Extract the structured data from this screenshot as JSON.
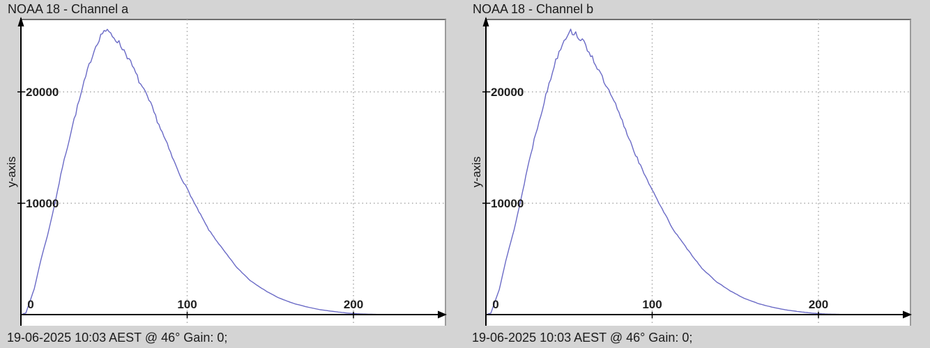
{
  "colors": {
    "background": "#d4d4d4",
    "plot_background": "#ffffff",
    "plot_border_top": "#6e6e6e",
    "plot_border_right": "#9b9b9b",
    "axis": "#000000",
    "grid": "#a8a8a8",
    "curve": "#6a6ac6",
    "text": "#1c1c1c"
  },
  "noise": {
    "min_count": 600,
    "peak_x_range": [
      28,
      92
    ],
    "amp_peak_factor": 0.01,
    "amp_base_factor": 0.006,
    "amp_offset": 20
  },
  "charts": [
    {
      "title": "NOAA 18 - Channel a",
      "footer": "19-06-2025 10:03 AEST @ 46° Gain: 0;",
      "y_axis_label": "y-axis",
      "noise_seed": 7,
      "x_ticks": [
        {
          "value": 0,
          "label": "0"
        },
        {
          "value": 100,
          "label": "100"
        },
        {
          "value": 200,
          "label": "200"
        }
      ],
      "y_ticks": [
        {
          "value": 10000,
          "label": "10000"
        },
        {
          "value": 20000,
          "label": "20000"
        }
      ]
    },
    {
      "title": "NOAA 18 - Channel b",
      "footer": "19-06-2025 10:03 AEST @ 46° Gain: 0;",
      "y_axis_label": "y-axis",
      "noise_seed": 13,
      "x_ticks": [
        {
          "value": 0,
          "label": "0"
        },
        {
          "value": 100,
          "label": "100"
        },
        {
          "value": 200,
          "label": "200"
        }
      ],
      "y_ticks": [
        {
          "value": 10000,
          "label": "10000"
        },
        {
          "value": 20000,
          "label": "20000"
        }
      ]
    }
  ],
  "chart_data": [
    {
      "type": "line",
      "title": "NOAA 18 - Channel a",
      "xlabel": "",
      "ylabel": "y-axis",
      "xlim": [
        0,
        255
      ],
      "ylim": [
        0,
        26500
      ],
      "x_tick_values": [
        0,
        100,
        200
      ],
      "y_tick_values": [
        10000,
        20000
      ],
      "grid": true,
      "legend": false,
      "line_color": "#6a6ac6",
      "points": {
        "x": [
          0,
          3,
          8,
          12,
          17,
          21,
          25,
          29,
          33,
          38,
          42,
          46,
          50,
          54,
          58,
          63,
          67,
          71,
          78,
          84,
          90,
          96,
          100,
          105,
          113,
          122,
          130,
          138,
          147,
          155,
          164,
          172,
          180,
          189,
          197,
          205,
          215,
          225,
          255
        ],
        "y": [
          0,
          150,
          2300,
          4900,
          7700,
          10400,
          13250,
          15750,
          18100,
          20800,
          22900,
          24500,
          25550,
          25200,
          24600,
          23500,
          22300,
          21000,
          18900,
          16700,
          14500,
          12400,
          11300,
          9800,
          7600,
          5750,
          4200,
          3050,
          2150,
          1500,
          1000,
          690,
          440,
          260,
          130,
          55,
          15,
          5,
          2
        ]
      }
    },
    {
      "type": "line",
      "title": "NOAA 18 - Channel b",
      "xlabel": "",
      "ylabel": "y-axis",
      "xlim": [
        0,
        255
      ],
      "ylim": [
        0,
        26500
      ],
      "x_tick_values": [
        0,
        100,
        200
      ],
      "y_tick_values": [
        10000,
        20000
      ],
      "grid": true,
      "legend": false,
      "line_color": "#6a6ac6",
      "points": {
        "x": [
          0,
          3,
          8,
          12,
          17,
          21,
          25,
          29,
          33,
          38,
          42,
          46,
          50,
          54,
          58,
          63,
          67,
          71,
          78,
          84,
          90,
          96,
          100,
          105,
          113,
          122,
          130,
          138,
          147,
          155,
          164,
          172,
          180,
          189,
          197,
          205,
          215,
          225,
          255
        ],
        "y": [
          0,
          140,
          2250,
          4850,
          7650,
          10300,
          13150,
          15700,
          18000,
          20700,
          22850,
          24400,
          25450,
          25250,
          24550,
          23400,
          22200,
          20900,
          18800,
          16600,
          14400,
          12350,
          11250,
          9750,
          7550,
          5700,
          4150,
          3020,
          2120,
          1480,
          980,
          670,
          430,
          250,
          125,
          50,
          12,
          4,
          2
        ]
      }
    }
  ]
}
